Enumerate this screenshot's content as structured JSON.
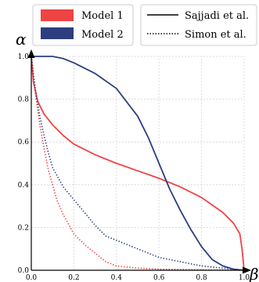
{
  "chart_data": {
    "type": "line",
    "title": "",
    "xlabel": "β",
    "ylabel": "α",
    "xlim": [
      0,
      1
    ],
    "ylim": [
      0,
      1
    ],
    "xticks": [
      "0.0",
      "0.2",
      "0.4",
      "0.6",
      "0.8",
      "1.0"
    ],
    "yticks": [
      "0.0",
      "0.2",
      "0.4",
      "0.6",
      "0.8",
      "1.0"
    ],
    "grid": true,
    "legends": [
      {
        "placement": "top-left",
        "entries": [
          "Model 1",
          "Model 2"
        ]
      },
      {
        "placement": "top-right",
        "entries": [
          "Sajjadi et al.",
          "Simon et al."
        ]
      }
    ],
    "colors": {
      "model1": "#ee4444",
      "model2": "#2c3e80"
    },
    "series": [
      {
        "name": "Model 1",
        "style": "solid",
        "color": "#ee4444",
        "x": [
          0.0,
          0.01,
          0.03,
          0.06,
          0.1,
          0.15,
          0.2,
          0.3,
          0.4,
          0.5,
          0.6,
          0.7,
          0.8,
          0.9,
          0.95,
          0.98,
          0.99,
          1.0
        ],
        "y": [
          1.0,
          0.88,
          0.79,
          0.73,
          0.68,
          0.63,
          0.59,
          0.54,
          0.5,
          0.465,
          0.43,
          0.39,
          0.34,
          0.27,
          0.22,
          0.17,
          0.1,
          0.0
        ]
      },
      {
        "name": "Model 2",
        "style": "solid",
        "color": "#2c3e80",
        "x": [
          0.0,
          0.1,
          0.15,
          0.2,
          0.3,
          0.4,
          0.5,
          0.55,
          0.6,
          0.65,
          0.7,
          0.75,
          0.8,
          0.85,
          0.9,
          0.95,
          1.0
        ],
        "y": [
          1.0,
          1.0,
          0.99,
          0.97,
          0.92,
          0.85,
          0.72,
          0.62,
          0.5,
          0.38,
          0.28,
          0.19,
          0.11,
          0.05,
          0.02,
          0.005,
          0.0
        ]
      },
      {
        "name": "Model 1",
        "style": "dotted",
        "color": "#ee4444",
        "x": [
          0.0,
          0.02,
          0.04,
          0.06,
          0.08,
          0.1,
          0.12,
          0.15,
          0.2,
          0.25,
          0.3,
          0.35,
          0.4,
          0.5,
          0.6,
          0.8,
          1.0
        ],
        "y": [
          1.0,
          0.82,
          0.68,
          0.57,
          0.47,
          0.4,
          0.33,
          0.26,
          0.17,
          0.12,
          0.08,
          0.04,
          0.02,
          0.01,
          0.005,
          0.002,
          0.0
        ]
      },
      {
        "name": "Model 2",
        "style": "dotted",
        "color": "#2c3e80",
        "x": [
          0.0,
          0.02,
          0.04,
          0.06,
          0.08,
          0.1,
          0.15,
          0.2,
          0.25,
          0.3,
          0.35,
          0.4,
          0.5,
          0.6,
          0.7,
          0.8,
          0.9,
          1.0
        ],
        "y": [
          1.0,
          0.84,
          0.72,
          0.63,
          0.55,
          0.48,
          0.39,
          0.33,
          0.27,
          0.21,
          0.16,
          0.14,
          0.1,
          0.06,
          0.04,
          0.02,
          0.01,
          0.0
        ]
      }
    ]
  }
}
